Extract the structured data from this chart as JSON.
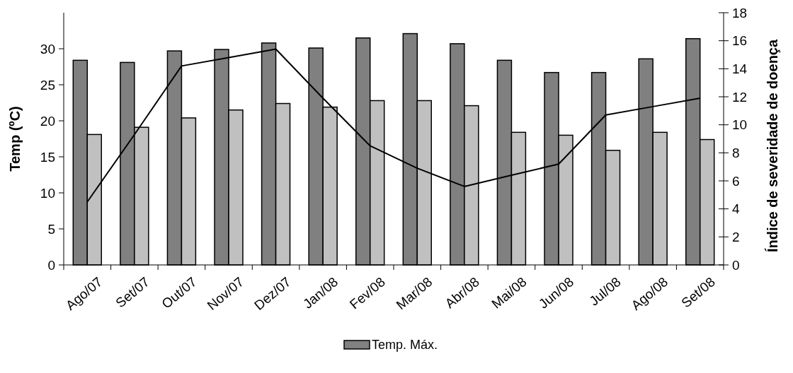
{
  "chart_data": {
    "type": "bar",
    "ylabel": "Temp (ºC)",
    "y2label": "Índice de severidade de doença",
    "categories": [
      "Ago/07",
      "Set/07",
      "Out/07",
      "Nov/07",
      "Dez/07",
      "Jan/08",
      "Fev/08",
      "Mar/08",
      "Abr/08",
      "Mai/08",
      "Jun/08",
      "Jul/08",
      "Ago/08",
      "Set/08"
    ],
    "series": [
      {
        "name": "Temp. Máx.",
        "color": "#808080",
        "values": [
          28.4,
          28.1,
          29.7,
          29.9,
          30.8,
          30.1,
          31.5,
          32.1,
          30.7,
          28.4,
          26.7,
          26.7,
          28.6,
          31.4
        ]
      },
      {
        "color": "#c0c0c0",
        "values": [
          18.1,
          19.1,
          20.4,
          21.5,
          22.4,
          21.9,
          22.8,
          22.8,
          22.1,
          18.4,
          18.0,
          15.9,
          18.4,
          17.4
        ]
      },
      {
        "type": "line",
        "axis": "y2",
        "color": "#000000",
        "values": [
          4.5,
          9.3,
          14.2,
          14.8,
          15.4,
          11.9,
          8.5,
          6.9,
          5.6,
          6.4,
          7.2,
          10.7,
          11.3,
          11.9
        ]
      }
    ],
    "ylim": [
      0,
      35
    ],
    "yticks": [
      0,
      5,
      10,
      15,
      20,
      25,
      30
    ],
    "y2lim": [
      0,
      18
    ],
    "y2ticks": [
      0,
      2,
      4,
      6,
      8,
      10,
      12,
      14,
      16,
      18
    ],
    "legend": "bottom",
    "marker": "none",
    "line_style": "solid",
    "grid": false
  }
}
